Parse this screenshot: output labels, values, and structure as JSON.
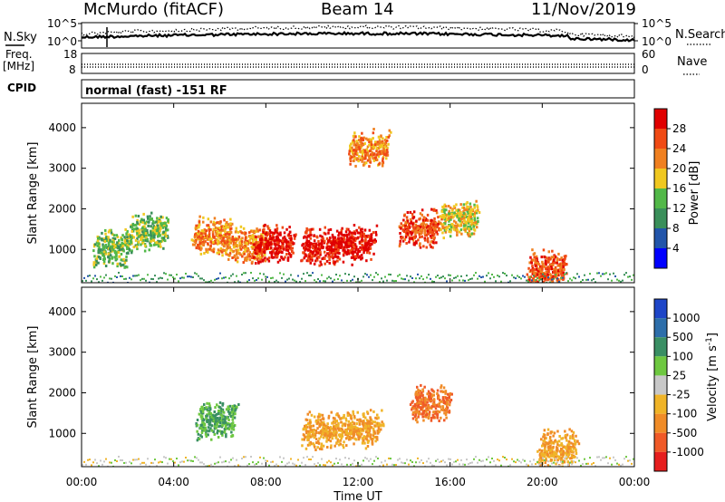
{
  "header": {
    "station": "McMurdo (fitACF)",
    "beam": "Beam 14",
    "date": "11/Nov/2019"
  },
  "top_panel": {
    "left_label": "N.Sky",
    "right_label": "N.Search",
    "left_ticks": [
      "10^5",
      "10^0"
    ],
    "right_ticks": [
      "10^5",
      "10^0"
    ]
  },
  "freq_panel": {
    "left_label_1": "Freq.",
    "left_label_2": "[MHz]",
    "left_ticks": [
      "18",
      "8"
    ],
    "right_label": "Nave",
    "right_ticks": [
      "60",
      "0"
    ]
  },
  "cpid_panel": {
    "label": "CPID",
    "mode": "normal (fast) -151 RF"
  },
  "chart_data": [
    {
      "type": "heatmap",
      "name": "power-panel",
      "ylabel": "Slant Range [km]",
      "ylim": [
        180,
        4600
      ],
      "y_ticks": [
        "1000",
        "2000",
        "3000",
        "4000"
      ],
      "y_tick_values": [
        1000,
        2000,
        3000,
        4000
      ],
      "xlim": [
        0,
        24
      ],
      "colorbar": {
        "label": "Power [dB]",
        "ticks": [
          "4",
          "8",
          "12",
          "16",
          "20",
          "24",
          "28"
        ],
        "colors": [
          "#0000ff",
          "#2255aa",
          "#3a8f5a",
          "#52b848",
          "#f0c820",
          "#f08020",
          "#f04a14",
          "#e00000"
        ]
      },
      "features": [
        {
          "hour": 1.2,
          "range": 800,
          "value": 12
        },
        {
          "hour": 2.7,
          "range": 1200,
          "value": 12
        },
        {
          "hour": 5.5,
          "range": 1100,
          "value": 20
        },
        {
          "hour": 7.1,
          "range": 900,
          "value": 20
        },
        {
          "hour": 8.2,
          "range": 900,
          "value": 28
        },
        {
          "hour": 10.2,
          "range": 850,
          "value": 28
        },
        {
          "hour": 11.7,
          "range": 900,
          "value": 28
        },
        {
          "hour": 14.5,
          "range": 1300,
          "value": 24
        },
        {
          "hour": 16.2,
          "range": 1550,
          "value": 16
        },
        {
          "hour": 12.3,
          "range": 3250,
          "value": 20
        },
        {
          "hour": 20.0,
          "range": 300,
          "value": 24
        }
      ]
    },
    {
      "type": "heatmap",
      "name": "velocity-panel",
      "ylabel": "Slant Range [km]",
      "ylim": [
        180,
        4600
      ],
      "y_ticks": [
        "1000",
        "2000",
        "3000",
        "4000"
      ],
      "y_tick_values": [
        1000,
        2000,
        3000,
        4000
      ],
      "xlim": [
        0,
        24
      ],
      "x_ticks": [
        "00:00",
        "04:00",
        "08:00",
        "12:00",
        "16:00",
        "20:00",
        "00:00"
      ],
      "x_tick_values": [
        0,
        4,
        8,
        12,
        16,
        20,
        24
      ],
      "xlabel": "Time UT",
      "colorbar": {
        "label": "Velocity [m s",
        "label_sup": "-1",
        "label_end": "]",
        "ticks": [
          "1000",
          "500",
          "100",
          "25",
          "-25",
          "-100",
          "-500",
          "-1000"
        ],
        "colors": [
          "#1e46c8",
          "#2d6eaa",
          "#3a8f64",
          "#6ec840",
          "#c8c8c8",
          "#f0b428",
          "#f08c28",
          "#f05a28",
          "#e61e1e"
        ]
      },
      "features": [
        {
          "hour": 5.7,
          "range": 1100,
          "value": 100
        },
        {
          "hour": 10.3,
          "range": 850,
          "value": -100
        },
        {
          "hour": 12.0,
          "range": 900,
          "value": -100
        },
        {
          "hour": 15.0,
          "range": 1500,
          "value": -500
        },
        {
          "hour": 20.5,
          "range": 400,
          "value": -100
        }
      ]
    }
  ]
}
